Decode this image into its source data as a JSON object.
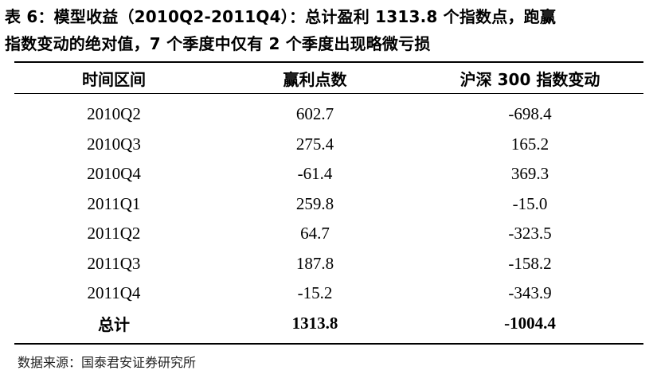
{
  "caption": {
    "line1": "表 6：模型收益（2010Q2-2011Q4）：总计盈利 1313.8 个指数点，跑赢",
    "line2": "指数变动的绝对值，7 个季度中仅有 2 个季度出现略微亏损"
  },
  "table": {
    "headers": [
      "时间区间",
      "赢利点数",
      "沪深 300 指数变动"
    ],
    "rows": [
      [
        "2010Q2",
        "602.7",
        "-698.4"
      ],
      [
        "2010Q3",
        "275.4",
        "165.2"
      ],
      [
        "2010Q4",
        "-61.4",
        "369.3"
      ],
      [
        "2011Q1",
        "259.8",
        "-15.0"
      ],
      [
        "2011Q2",
        "64.7",
        "-323.5"
      ],
      [
        "2011Q3",
        "187.8",
        "-158.2"
      ],
      [
        "2011Q4",
        "-15.2",
        "-343.9"
      ]
    ],
    "total": [
      "总计",
      "1313.8",
      "-1004.4"
    ]
  },
  "source": "数据来源：国泰君安证券研究所"
}
